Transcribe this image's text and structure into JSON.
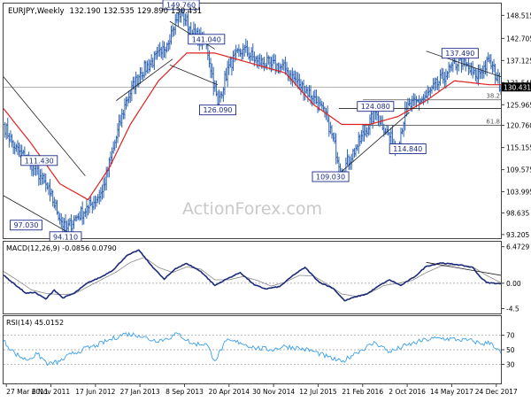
{
  "chart_data": [
    {
      "type": "line",
      "title": "EURJPY,Weekly",
      "ohlc": {
        "open": "132.190",
        "high": "132.535",
        "low": "129.890",
        "close": "130.431"
      },
      "current_price": "130.431",
      "y_ticks": [
        "148.515",
        "142.705",
        "137.125",
        "131.545",
        "125.965",
        "120.760",
        "115.155",
        "109.575",
        "103.995",
        "98.635",
        "93.205"
      ],
      "x_ticks": [
        "27 Mar 2011",
        "6 Nov 2011",
        "17 Jun 2012",
        "27 Jan 2013",
        "8 Sep 2013",
        "20 Apr 2014",
        "30 Nov 2014",
        "12 Jul 2015",
        "21 Feb 2016",
        "2 Oct 2016",
        "14 May 2017",
        "24 Dec 2017"
      ],
      "ylim": [
        92.5,
        151.5
      ],
      "annotations": [
        {
          "label": "149.760",
          "week": 126,
          "value": 149.76
        },
        {
          "label": "141.040",
          "week": 144,
          "value": 141.04
        },
        {
          "label": "137.490",
          "week": 324,
          "value": 137.49
        },
        {
          "label": "126.090",
          "week": 152,
          "value": 126.09
        },
        {
          "label": "124.080",
          "week": 264,
          "value": 124.08
        },
        {
          "label": "114.840",
          "week": 279,
          "value": 114.84
        },
        {
          "label": "111.430",
          "week": 19,
          "value": 111.43
        },
        {
          "label": "109.030",
          "week": 240,
          "value": 109.03
        },
        {
          "label": "97.030",
          "week": 16,
          "value": 97.03
        },
        {
          "label": "94.110",
          "week": 44,
          "value": 94.11
        }
      ],
      "fib_levels": [
        {
          "label": "38.2",
          "value": 127.2
        },
        {
          "label": "61.8",
          "value": 120.76
        }
      ],
      "watermark": "ActionForex.com",
      "weeks_total": 353,
      "price_anchors": [
        [
          0,
          121
        ],
        [
          8,
          115
        ],
        [
          19,
          111.4
        ],
        [
          26,
          108
        ],
        [
          33,
          103.5
        ],
        [
          44,
          94.1
        ],
        [
          50,
          97
        ],
        [
          60,
          100
        ],
        [
          70,
          104
        ],
        [
          78,
          115
        ],
        [
          87,
          127
        ],
        [
          97,
          134
        ],
        [
          112,
          139
        ],
        [
          120,
          145
        ],
        [
          126,
          149.76
        ],
        [
          134,
          144
        ],
        [
          144,
          141.04
        ],
        [
          152,
          126.09
        ],
        [
          160,
          136
        ],
        [
          170,
          140
        ],
        [
          180,
          137
        ],
        [
          190,
          136
        ],
        [
          200,
          135
        ],
        [
          210,
          131
        ],
        [
          220,
          128
        ],
        [
          230,
          122
        ],
        [
          240,
          109.03
        ],
        [
          250,
          115
        ],
        [
          264,
          124.08
        ],
        [
          279,
          114.84
        ],
        [
          286,
          125
        ],
        [
          300,
          128
        ],
        [
          315,
          134
        ],
        [
          324,
          137.49
        ],
        [
          335,
          133
        ],
        [
          345,
          137
        ],
        [
          353,
          130.431
        ]
      ],
      "ma_anchors": [
        [
          0,
          125
        ],
        [
          20,
          116
        ],
        [
          40,
          106
        ],
        [
          60,
          102
        ],
        [
          75,
          110
        ],
        [
          90,
          121
        ],
        [
          110,
          132
        ],
        [
          130,
          139
        ],
        [
          150,
          139
        ],
        [
          170,
          137
        ],
        [
          200,
          134
        ],
        [
          220,
          126
        ],
        [
          240,
          121
        ],
        [
          260,
          121
        ],
        [
          280,
          123
        ],
        [
          300,
          127
        ],
        [
          320,
          132
        ],
        [
          345,
          131
        ],
        [
          353,
          131
        ]
      ]
    },
    {
      "type": "line",
      "title": "MACD(12,26,9) -0.0856 0.0790",
      "y_ticks": [
        "6.4729",
        "0.00",
        "-4.5"
      ],
      "ylim": [
        -5.2,
        7.2
      ],
      "macd_anchors": [
        [
          0,
          1.4
        ],
        [
          8,
          -0.2
        ],
        [
          16,
          -1.8
        ],
        [
          22,
          -1.6
        ],
        [
          30,
          -2.8
        ],
        [
          36,
          -1.2
        ],
        [
          42,
          -2.6
        ],
        [
          50,
          -1.8
        ],
        [
          60,
          0.1
        ],
        [
          70,
          1.2
        ],
        [
          78,
          2.4
        ],
        [
          87,
          4.8
        ],
        [
          96,
          5.9
        ],
        [
          104,
          3.4
        ],
        [
          114,
          0.7
        ],
        [
          122,
          2.6
        ],
        [
          130,
          3.5
        ],
        [
          140,
          2.1
        ],
        [
          150,
          -0.4
        ],
        [
          158,
          0.7
        ],
        [
          168,
          1.9
        ],
        [
          178,
          -0.3
        ],
        [
          186,
          -1.0
        ],
        [
          196,
          -0.6
        ],
        [
          206,
          1.5
        ],
        [
          214,
          2.8
        ],
        [
          224,
          0.2
        ],
        [
          234,
          -0.9
        ],
        [
          242,
          -3.1
        ],
        [
          250,
          -2.4
        ],
        [
          258,
          -1.9
        ],
        [
          268,
          -0.2
        ],
        [
          274,
          0.6
        ],
        [
          282,
          -0.4
        ],
        [
          292,
          1.2
        ],
        [
          300,
          3.0
        ],
        [
          310,
          3.6
        ],
        [
          322,
          3.3
        ],
        [
          333,
          2.8
        ],
        [
          338,
          1.2
        ],
        [
          343,
          0.1
        ],
        [
          353,
          -0.08
        ]
      ],
      "signal_anchors": [
        [
          0,
          2.1
        ],
        [
          10,
          0.5
        ],
        [
          20,
          -1.2
        ],
        [
          30,
          -1.8
        ],
        [
          40,
          -2.0
        ],
        [
          50,
          -1.9
        ],
        [
          60,
          -0.6
        ],
        [
          70,
          0.7
        ],
        [
          80,
          2.0
        ],
        [
          90,
          3.7
        ],
        [
          100,
          4.6
        ],
        [
          110,
          2.8
        ],
        [
          120,
          1.9
        ],
        [
          130,
          2.9
        ],
        [
          140,
          2.5
        ],
        [
          150,
          0.6
        ],
        [
          160,
          0.6
        ],
        [
          170,
          1.2
        ],
        [
          180,
          0.5
        ],
        [
          190,
          -0.5
        ],
        [
          200,
          0.2
        ],
        [
          210,
          1.4
        ],
        [
          220,
          1.3
        ],
        [
          230,
          -0.2
        ],
        [
          240,
          -1.9
        ],
        [
          250,
          -2.3
        ],
        [
          260,
          -1.7
        ],
        [
          270,
          -0.4
        ],
        [
          280,
          0.0
        ],
        [
          290,
          0.5
        ],
        [
          300,
          1.9
        ],
        [
          310,
          3.0
        ],
        [
          322,
          3.3
        ],
        [
          333,
          2.9
        ],
        [
          342,
          1.5
        ],
        [
          353,
          0.08
        ]
      ]
    },
    {
      "type": "line",
      "title": "RSI(14) 45.0152",
      "y_ticks": [
        "70",
        "50",
        "30"
      ],
      "ylim": [
        5,
        95
      ],
      "rsi_anchors": [
        [
          0,
          62
        ],
        [
          8,
          45
        ],
        [
          16,
          36
        ],
        [
          24,
          44
        ],
        [
          32,
          30
        ],
        [
          40,
          34
        ],
        [
          48,
          44
        ],
        [
          56,
          50
        ],
        [
          66,
          56
        ],
        [
          76,
          64
        ],
        [
          86,
          72
        ],
        [
          96,
          70
        ],
        [
          106,
          63
        ],
        [
          114,
          64
        ],
        [
          124,
          72
        ],
        [
          134,
          58
        ],
        [
          144,
          58
        ],
        [
          150,
          35
        ],
        [
          158,
          62
        ],
        [
          168,
          60
        ],
        [
          178,
          53
        ],
        [
          190,
          50
        ],
        [
          200,
          55
        ],
        [
          210,
          52
        ],
        [
          220,
          48
        ],
        [
          230,
          40
        ],
        [
          240,
          33
        ],
        [
          250,
          46
        ],
        [
          264,
          60
        ],
        [
          274,
          47
        ],
        [
          286,
          56
        ],
        [
          300,
          64
        ],
        [
          310,
          66
        ],
        [
          322,
          64
        ],
        [
          333,
          62
        ],
        [
          340,
          58
        ],
        [
          346,
          60
        ],
        [
          353,
          45.0152
        ]
      ]
    }
  ]
}
